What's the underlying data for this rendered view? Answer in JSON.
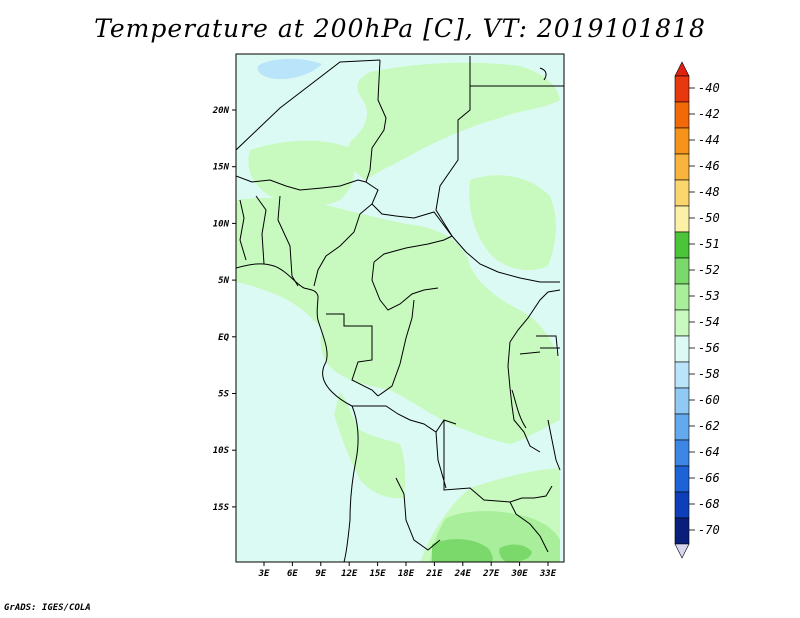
{
  "title": "Temperature at 200hPa [C], VT: 2019101818",
  "footer": "GrADS: IGES/COLA",
  "map": {
    "lon_labels": [
      "3E",
      "6E",
      "9E",
      "12E",
      "15E",
      "18E",
      "21E",
      "24E",
      "27E",
      "30E",
      "33E"
    ],
    "lat_labels": [
      "20N",
      "15N",
      "10N",
      "5N",
      "EQ",
      "5S",
      "10S",
      "15S"
    ]
  },
  "colorbar": {
    "levels": [
      "-40",
      "-42",
      "-44",
      "-46",
      "-48",
      "-50",
      "-51",
      "-52",
      "-53",
      "-54",
      "-56",
      "-58",
      "-60",
      "-62",
      "-64",
      "-66",
      "-68",
      "-70"
    ],
    "colors": [
      "#e8380f",
      "#f26a08",
      "#f7921a",
      "#f8b43c",
      "#fbd56e",
      "#fbf0a6",
      "#4cc43a",
      "#7ad96a",
      "#a9ee9a",
      "#c8fac0",
      "#dcfaf4",
      "#b9e4f9",
      "#8fc9f4",
      "#63a9ee",
      "#3d86e6",
      "#1e63d6",
      "#0f3fb8",
      "#0a1f7a"
    ],
    "top_color": "#e02010",
    "bottom_color": "#d9d6f0"
  }
}
